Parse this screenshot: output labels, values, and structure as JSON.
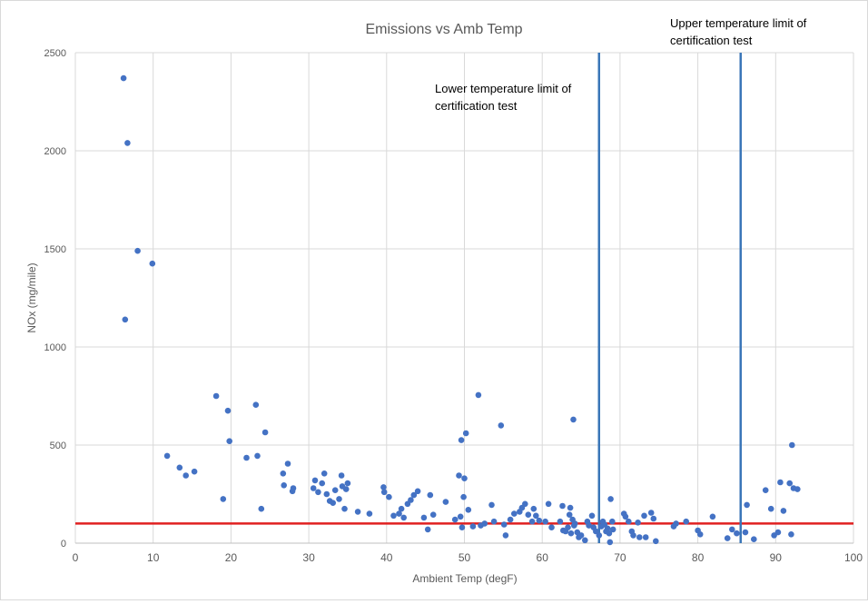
{
  "chart_data": {
    "type": "scatter",
    "title": "Emissions vs Amb Temp",
    "xlabel": "Ambient Temp (degF)",
    "ylabel": "NOx (mg/mile)",
    "xlim": [
      0,
      100
    ],
    "ylim": [
      0,
      2500
    ],
    "x_ticks": [
      0,
      10,
      20,
      30,
      40,
      50,
      60,
      70,
      80,
      90,
      100
    ],
    "y_ticks": [
      0,
      500,
      1000,
      1500,
      2000,
      2500
    ],
    "grid": "vertical and horizontal major gridlines",
    "legend": "none",
    "series": [
      {
        "color": "#4472c4",
        "points": [
          [
            6.2,
            2370
          ],
          [
            6.7,
            2040
          ],
          [
            8.0,
            1490
          ],
          [
            9.9,
            1425
          ],
          [
            6.4,
            1140
          ],
          [
            11.8,
            445
          ],
          [
            13.4,
            385
          ],
          [
            14.2,
            345
          ],
          [
            15.3,
            365
          ],
          [
            18.1,
            750
          ],
          [
            19.0,
            225
          ],
          [
            19.6,
            675
          ],
          [
            19.8,
            520
          ],
          [
            22.0,
            435
          ],
          [
            23.2,
            705
          ],
          [
            23.4,
            445
          ],
          [
            23.9,
            175
          ],
          [
            24.4,
            565
          ],
          [
            26.7,
            355
          ],
          [
            26.8,
            295
          ],
          [
            27.3,
            405
          ],
          [
            27.9,
            265
          ],
          [
            28.0,
            280
          ],
          [
            30.6,
            280
          ],
          [
            30.8,
            320
          ],
          [
            31.2,
            260
          ],
          [
            31.7,
            305
          ],
          [
            32.0,
            355
          ],
          [
            32.3,
            250
          ],
          [
            32.7,
            215
          ],
          [
            33.1,
            205
          ],
          [
            33.4,
            270
          ],
          [
            33.9,
            225
          ],
          [
            34.2,
            345
          ],
          [
            34.3,
            290
          ],
          [
            34.8,
            275
          ],
          [
            35.0,
            305
          ],
          [
            34.6,
            175
          ],
          [
            36.3,
            160
          ],
          [
            37.8,
            150
          ],
          [
            39.6,
            285
          ],
          [
            39.7,
            260
          ],
          [
            40.3,
            235
          ],
          [
            40.9,
            140
          ],
          [
            41.6,
            150
          ],
          [
            41.9,
            175
          ],
          [
            42.2,
            130
          ],
          [
            42.7,
            200
          ],
          [
            43.1,
            220
          ],
          [
            43.5,
            245
          ],
          [
            44.0,
            265
          ],
          [
            44.8,
            130
          ],
          [
            45.3,
            70
          ],
          [
            45.6,
            245
          ],
          [
            46.0,
            145
          ],
          [
            47.6,
            210
          ],
          [
            48.8,
            120
          ],
          [
            49.3,
            345
          ],
          [
            49.5,
            135
          ],
          [
            49.7,
            80
          ],
          [
            49.6,
            525
          ],
          [
            50.0,
            330
          ],
          [
            49.9,
            235
          ],
          [
            50.2,
            560
          ],
          [
            50.5,
            170
          ],
          [
            51.1,
            85
          ],
          [
            51.8,
            755
          ],
          [
            52.1,
            90
          ],
          [
            52.6,
            100
          ],
          [
            53.5,
            195
          ],
          [
            53.8,
            110
          ],
          [
            54.7,
            600
          ],
          [
            55.1,
            95
          ],
          [
            55.3,
            40
          ],
          [
            55.9,
            120
          ],
          [
            56.4,
            150
          ],
          [
            57.1,
            160
          ],
          [
            57.4,
            180
          ],
          [
            57.8,
            200
          ],
          [
            58.2,
            145
          ],
          [
            58.7,
            110
          ],
          [
            58.9,
            175
          ],
          [
            59.2,
            140
          ],
          [
            59.6,
            115
          ],
          [
            60.4,
            110
          ],
          [
            60.8,
            200
          ],
          [
            61.2,
            80
          ],
          [
            62.3,
            110
          ],
          [
            62.6,
            190
          ],
          [
            62.7,
            65
          ],
          [
            63.0,
            60
          ],
          [
            63.3,
            80
          ],
          [
            63.5,
            145
          ],
          [
            63.6,
            180
          ],
          [
            63.7,
            50
          ],
          [
            63.9,
            120
          ],
          [
            64.0,
            630
          ],
          [
            64.1,
            90
          ],
          [
            64.2,
            100
          ],
          [
            64.5,
            55
          ],
          [
            64.7,
            30
          ],
          [
            65.0,
            40
          ],
          [
            65.5,
            15
          ],
          [
            65.8,
            110
          ],
          [
            66.0,
            90
          ],
          [
            66.4,
            140
          ],
          [
            66.6,
            80
          ],
          [
            66.9,
            60
          ],
          [
            67.3,
            40
          ],
          [
            67.6,
            85
          ],
          [
            67.8,
            110
          ],
          [
            68.0,
            95
          ],
          [
            68.2,
            60
          ],
          [
            68.4,
            75
          ],
          [
            68.6,
            50
          ],
          [
            68.7,
            5
          ],
          [
            68.8,
            225
          ],
          [
            69.0,
            110
          ],
          [
            69.1,
            70
          ],
          [
            70.5,
            150
          ],
          [
            70.7,
            135
          ],
          [
            71.1,
            110
          ],
          [
            71.5,
            60
          ],
          [
            71.7,
            40
          ],
          [
            72.3,
            105
          ],
          [
            72.5,
            30
          ],
          [
            73.1,
            140
          ],
          [
            73.3,
            30
          ],
          [
            74.0,
            155
          ],
          [
            74.3,
            125
          ],
          [
            74.6,
            10
          ],
          [
            76.9,
            85
          ],
          [
            77.2,
            100
          ],
          [
            78.5,
            110
          ],
          [
            80.0,
            65
          ],
          [
            80.3,
            45
          ],
          [
            81.9,
            135
          ],
          [
            83.8,
            25
          ],
          [
            84.4,
            70
          ],
          [
            85.0,
            50
          ],
          [
            86.3,
            195
          ],
          [
            86.1,
            55
          ],
          [
            87.2,
            20
          ],
          [
            88.7,
            270
          ],
          [
            89.4,
            175
          ],
          [
            89.8,
            40
          ],
          [
            90.3,
            55
          ],
          [
            90.6,
            310
          ],
          [
            91.0,
            165
          ],
          [
            91.8,
            305
          ],
          [
            92.0,
            45
          ],
          [
            92.1,
            500
          ],
          [
            92.3,
            280
          ],
          [
            92.8,
            275
          ]
        ]
      }
    ],
    "reference_lines": [
      {
        "orientation": "horizontal",
        "y": 100,
        "color": "#e02020"
      },
      {
        "orientation": "vertical",
        "x": 67.3,
        "color": "#3a76b8"
      },
      {
        "orientation": "vertical",
        "x": 85.5,
        "color": "#3a76b8"
      }
    ],
    "annotations": {
      "lower_limit_line1": "Lower temperature limit of",
      "lower_limit_line2": "certification test",
      "upper_limit_line1": "Upper temperature limit of",
      "upper_limit_line2": "certification test"
    }
  }
}
